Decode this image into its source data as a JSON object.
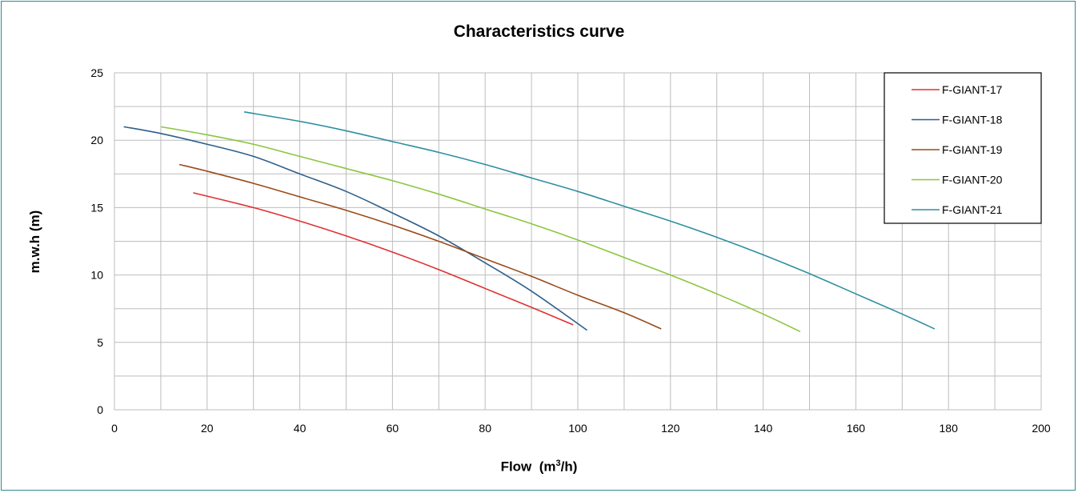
{
  "chart_data": {
    "type": "line",
    "title": "Characteristics curve",
    "xlabel": "Flow",
    "xlabel_unit_prefix": "(m",
    "xlabel_unit_sup": "3",
    "xlabel_unit_suffix": "/h)",
    "ylabel": "m.w.h (m)",
    "xlim": [
      0,
      200
    ],
    "ylim": [
      0,
      25
    ],
    "xticks": [
      0,
      20,
      40,
      60,
      80,
      100,
      120,
      140,
      160,
      180,
      200
    ],
    "yticks": [
      0,
      5,
      10,
      15,
      20,
      25
    ],
    "x_minor_step": 10,
    "y_minor_step": 2.5,
    "grid": true,
    "legend_position": "top-right",
    "series": [
      {
        "name": "F-GIANT-17",
        "color": "#e03030",
        "x": [
          17,
          30,
          40,
          50,
          60,
          70,
          80,
          90,
          99
        ],
        "y": [
          16.1,
          15.0,
          14.0,
          12.9,
          11.7,
          10.4,
          9.0,
          7.6,
          6.3
        ]
      },
      {
        "name": "F-GIANT-18",
        "color": "#2e5f8a",
        "x": [
          2,
          10,
          20,
          30,
          40,
          50,
          60,
          70,
          80,
          90,
          102
        ],
        "y": [
          21.0,
          20.5,
          19.7,
          18.8,
          17.5,
          16.2,
          14.6,
          12.9,
          10.9,
          8.8,
          5.9
        ]
      },
      {
        "name": "F-GIANT-19",
        "color": "#9b4a1a",
        "x": [
          14,
          20,
          30,
          40,
          50,
          60,
          70,
          80,
          90,
          100,
          110,
          118
        ],
        "y": [
          18.2,
          17.7,
          16.8,
          15.8,
          14.8,
          13.7,
          12.5,
          11.2,
          9.9,
          8.5,
          7.2,
          6.0
        ]
      },
      {
        "name": "F-GIANT-20",
        "color": "#8cc63f",
        "x": [
          10,
          20,
          30,
          40,
          50,
          60,
          70,
          80,
          90,
          100,
          110,
          120,
          130,
          140,
          148
        ],
        "y": [
          21.0,
          20.4,
          19.7,
          18.8,
          17.9,
          17.0,
          16.0,
          14.9,
          13.8,
          12.6,
          11.3,
          10.0,
          8.6,
          7.1,
          5.8
        ]
      },
      {
        "name": "F-GIANT-21",
        "color": "#2e8fa0",
        "x": [
          28,
          40,
          50,
          60,
          70,
          80,
          90,
          100,
          110,
          120,
          130,
          140,
          150,
          160,
          170,
          177
        ],
        "y": [
          22.1,
          21.4,
          20.7,
          19.9,
          19.1,
          18.2,
          17.2,
          16.2,
          15.1,
          14.0,
          12.8,
          11.5,
          10.1,
          8.6,
          7.1,
          6.0
        ]
      }
    ]
  }
}
